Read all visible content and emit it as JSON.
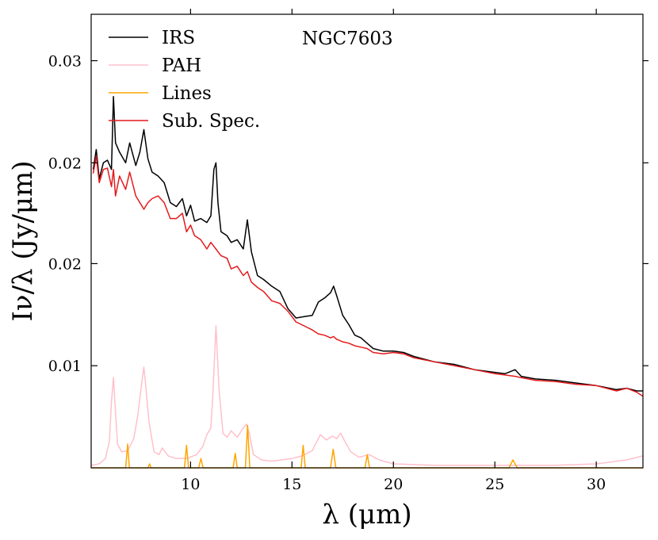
{
  "chart_data": {
    "type": "line",
    "title": "",
    "annotation": "NGC7603",
    "xlabel": "λ (μm)",
    "ylabel": "Iν/λ (Jy/μm)",
    "xlim": [
      5.1,
      32.3
    ],
    "ylim": [
      0.0,
      0.0342
    ],
    "x_ticks": [
      10,
      15,
      20,
      25,
      30
    ],
    "x_tick_labels": [
      "10",
      "15",
      "20",
      "25",
      "30"
    ],
    "y_ticks": [
      0.0077,
      0.0154,
      0.023,
      0.0307
    ],
    "y_tick_labels": [
      "0.01",
      "0.02",
      "0.02",
      "0.03"
    ],
    "legend_position": "top-left",
    "series": [
      {
        "name": "IRS",
        "color": "#000000",
        "x": [
          5.2,
          5.35,
          5.5,
          5.7,
          5.9,
          6.1,
          6.2,
          6.3,
          6.5,
          6.8,
          7.0,
          7.3,
          7.5,
          7.7,
          7.9,
          8.1,
          8.4,
          8.7,
          9.0,
          9.3,
          9.6,
          9.8,
          10.0,
          10.2,
          10.5,
          10.8,
          11.0,
          11.15,
          11.25,
          11.35,
          11.5,
          11.8,
          12.0,
          12.3,
          12.6,
          12.8,
          13.0,
          13.3,
          13.6,
          14.0,
          14.4,
          14.8,
          15.2,
          15.6,
          16.0,
          16.3,
          16.6,
          16.9,
          17.05,
          17.2,
          17.5,
          17.8,
          18.1,
          18.4,
          18.7,
          19.0,
          19.5,
          20.0,
          20.5,
          21.0,
          22.0,
          23.0,
          24.0,
          25.0,
          25.5,
          26.0,
          26.3,
          27.0,
          28.0,
          29.0,
          30.0,
          31.0,
          31.5,
          32.0,
          32.3
        ],
        "y": [
          0.0225,
          0.024,
          0.0218,
          0.023,
          0.0232,
          0.0225,
          0.028,
          0.0245,
          0.0238,
          0.023,
          0.0245,
          0.0228,
          0.0238,
          0.0255,
          0.0233,
          0.0223,
          0.022,
          0.0215,
          0.02,
          0.0197,
          0.0203,
          0.019,
          0.0198,
          0.0186,
          0.0188,
          0.0185,
          0.019,
          0.0225,
          0.023,
          0.02,
          0.0178,
          0.0175,
          0.017,
          0.0172,
          0.0165,
          0.0187,
          0.0163,
          0.0145,
          0.0142,
          0.0137,
          0.0133,
          0.012,
          0.0113,
          0.0114,
          0.0115,
          0.0125,
          0.0128,
          0.0132,
          0.0137,
          0.013,
          0.0115,
          0.0108,
          0.01,
          0.0098,
          0.0094,
          0.009,
          0.0088,
          0.0088,
          0.0087,
          0.0084,
          0.008,
          0.0078,
          0.0074,
          0.0072,
          0.0071,
          0.0074,
          0.0069,
          0.0067,
          0.0066,
          0.0064,
          0.0062,
          0.0059,
          0.006,
          0.0058,
          0.0058
        ]
      },
      {
        "name": "PAH",
        "color": "#ffc0cb",
        "x": [
          5.1,
          5.5,
          5.8,
          6.0,
          6.1,
          6.2,
          6.3,
          6.4,
          6.6,
          6.9,
          7.2,
          7.4,
          7.6,
          7.7,
          7.8,
          7.95,
          8.2,
          8.45,
          8.6,
          8.9,
          9.3,
          9.8,
          10.3,
          10.6,
          10.8,
          11.0,
          11.1,
          11.25,
          11.4,
          11.6,
          11.8,
          12.0,
          12.3,
          12.6,
          12.75,
          12.9,
          13.1,
          13.5,
          14.0,
          14.5,
          15.0,
          15.5,
          16.0,
          16.4,
          16.7,
          17.0,
          17.2,
          17.4,
          17.6,
          17.9,
          18.3,
          18.8,
          19.3,
          20.0,
          22.0,
          25.0,
          28.0,
          30.0,
          31.5,
          32.3
        ],
        "y": [
          0.0002,
          0.0003,
          0.0007,
          0.002,
          0.005,
          0.0068,
          0.0042,
          0.0018,
          0.0012,
          0.0013,
          0.0022,
          0.004,
          0.0065,
          0.0076,
          0.006,
          0.0035,
          0.0012,
          0.001,
          0.0015,
          0.0009,
          0.0007,
          0.0007,
          0.001,
          0.0016,
          0.0025,
          0.003,
          0.0055,
          0.0107,
          0.006,
          0.0026,
          0.0023,
          0.0028,
          0.0023,
          0.003,
          0.0033,
          0.0026,
          0.001,
          0.0006,
          0.0005,
          0.0006,
          0.0007,
          0.0009,
          0.0013,
          0.0025,
          0.0021,
          0.0024,
          0.0022,
          0.0026,
          0.002,
          0.0012,
          0.0008,
          0.001,
          0.0006,
          0.0003,
          0.0002,
          0.0002,
          0.0002,
          0.0003,
          0.0006,
          0.0009
        ]
      },
      {
        "name": "Lines",
        "color": "#ffa500",
        "x": [
          5.1,
          6.8,
          6.9,
          6.98,
          7.1,
          7.9,
          7.98,
          8.05,
          8.2,
          9.7,
          9.8,
          9.9,
          10.4,
          10.51,
          10.62,
          12.1,
          12.2,
          12.3,
          12.7,
          12.81,
          12.92,
          15.45,
          15.55,
          15.65,
          16.9,
          17.03,
          17.16,
          18.6,
          18.71,
          18.82,
          25.7,
          25.89,
          26.1,
          32.3
        ],
        "y": [
          0.0,
          0.0,
          0.0018,
          0.0,
          0.0,
          0.0,
          0.0003,
          0.0,
          0.0,
          0.0,
          0.0017,
          0.0,
          0.0,
          0.0007,
          0.0,
          0.0,
          0.0011,
          0.0,
          0.0,
          0.0032,
          0.0,
          0.0,
          0.0017,
          0.0,
          0.0,
          0.0014,
          0.0,
          0.0,
          0.001,
          0.0,
          0.0,
          0.0006,
          0.0,
          0.0
        ]
      },
      {
        "name": "Sub. Spec.",
        "color": "#e41a1c",
        "x": [
          5.2,
          5.35,
          5.5,
          5.7,
          5.9,
          6.1,
          6.2,
          6.3,
          6.5,
          6.8,
          7.0,
          7.3,
          7.5,
          7.7,
          7.9,
          8.1,
          8.4,
          8.7,
          9.0,
          9.3,
          9.6,
          9.8,
          10.0,
          10.2,
          10.5,
          10.8,
          11.0,
          11.15,
          11.25,
          11.35,
          11.5,
          11.8,
          12.0,
          12.3,
          12.6,
          12.8,
          13.0,
          13.3,
          13.6,
          14.0,
          14.4,
          14.8,
          15.2,
          15.6,
          16.0,
          16.3,
          16.6,
          16.9,
          17.05,
          17.2,
          17.5,
          17.8,
          18.1,
          18.4,
          18.7,
          19.0,
          19.5,
          20.0,
          20.5,
          21.0,
          22.0,
          23.0,
          24.0,
          25.0,
          25.5,
          26.0,
          26.3,
          27.0,
          28.0,
          29.0,
          30.0,
          31.0,
          31.5,
          32.0,
          32.3
        ],
        "y": [
          0.0222,
          0.0235,
          0.0215,
          0.0225,
          0.0226,
          0.0212,
          0.0225,
          0.0205,
          0.022,
          0.021,
          0.0223,
          0.0205,
          0.02,
          0.0195,
          0.02,
          0.0203,
          0.0205,
          0.02,
          0.0188,
          0.0188,
          0.0192,
          0.0178,
          0.0183,
          0.0175,
          0.0172,
          0.0165,
          0.017,
          0.0167,
          0.0165,
          0.0163,
          0.016,
          0.0158,
          0.015,
          0.0152,
          0.0145,
          0.0148,
          0.014,
          0.0136,
          0.0133,
          0.0126,
          0.0124,
          0.0118,
          0.011,
          0.0107,
          0.0104,
          0.0101,
          0.01,
          0.0098,
          0.0099,
          0.0097,
          0.0095,
          0.0094,
          0.0092,
          0.0091,
          0.009,
          0.0087,
          0.0086,
          0.0087,
          0.0086,
          0.0083,
          0.008,
          0.0077,
          0.0074,
          0.0071,
          0.007,
          0.0069,
          0.0068,
          0.0066,
          0.0065,
          0.0063,
          0.0062,
          0.0058,
          0.006,
          0.0057,
          0.0054
        ]
      }
    ]
  }
}
